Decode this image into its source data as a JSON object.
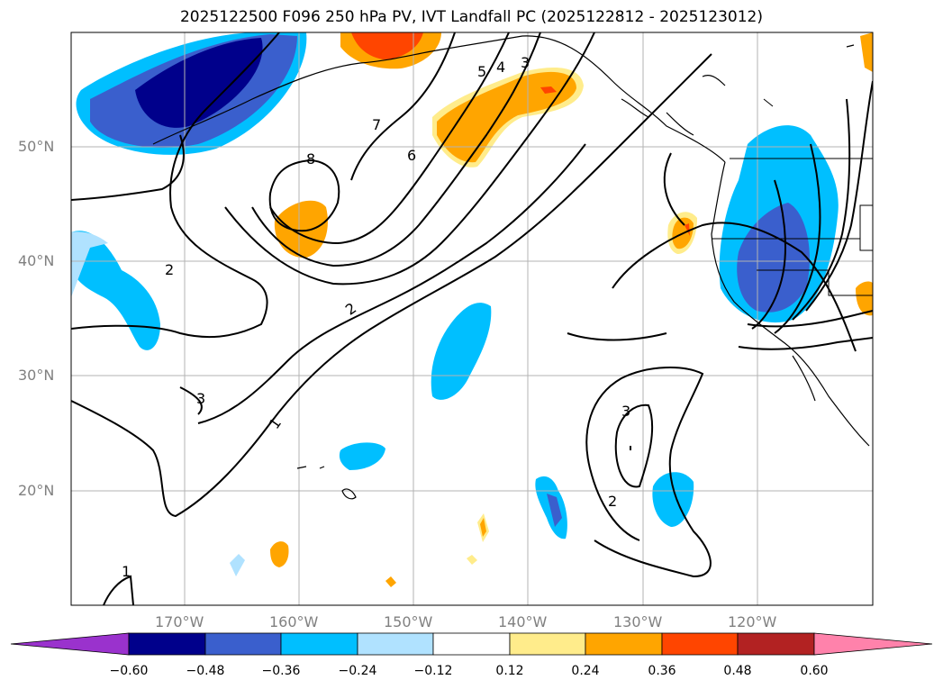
{
  "title": "2025122500 F096 250 hPa PV, IVT Landfall PC (2025122812 - 2025123012)",
  "map": {
    "lat_labels": [
      "50°N",
      "40°N",
      "30°N",
      "20°N"
    ],
    "lon_labels": [
      "170°W",
      "160°W",
      "150°W",
      "140°W",
      "130°W",
      "120°W"
    ],
    "contour_labels": [
      "1",
      "2",
      "3",
      "4",
      "5",
      "6",
      "7",
      "8"
    ]
  },
  "colorbar": {
    "ticks": [
      "−0.60",
      "−0.48",
      "−0.36",
      "−0.24",
      "−0.12",
      "0.12",
      "0.24",
      "0.36",
      "0.48",
      "0.60"
    ],
    "colors": [
      "#9a32cd",
      "#00008b",
      "#3a5fcd",
      "#00bfff",
      "#b0e2ff",
      "#ffffff",
      "#ffec8b",
      "#ffa500",
      "#ff4500",
      "#b22222",
      "#ff82ab"
    ]
  }
}
